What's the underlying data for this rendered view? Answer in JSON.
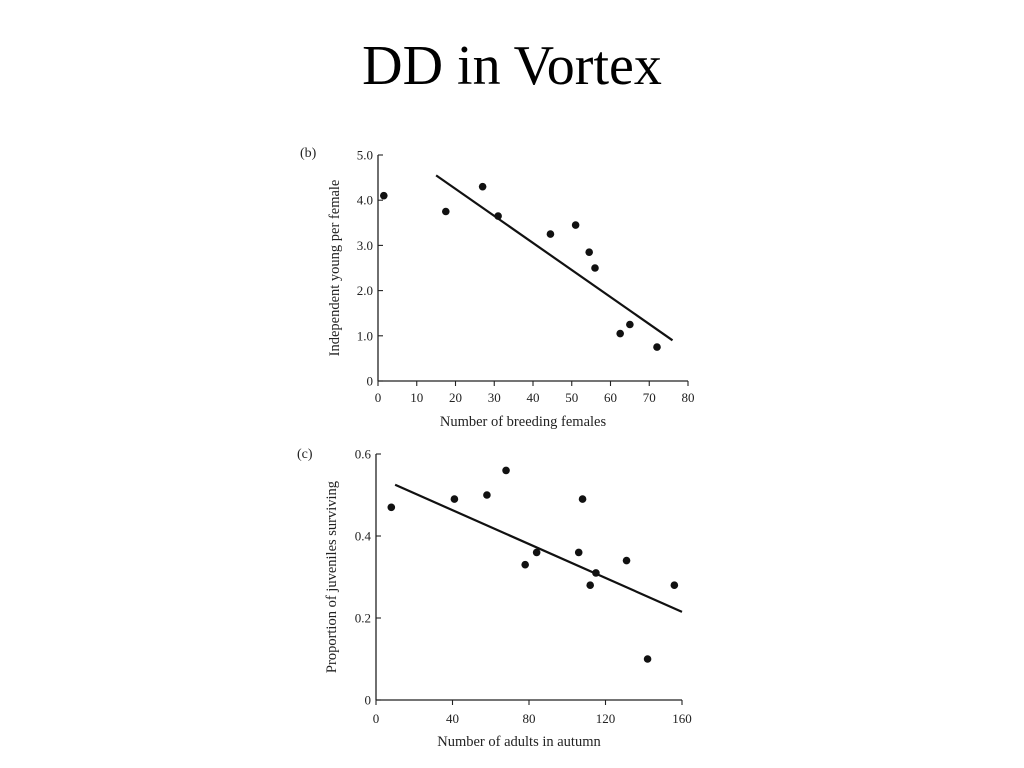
{
  "slide": {
    "title": "DD in Vortex"
  },
  "chart_data": [
    {
      "type": "scatter",
      "panel_label": "(b)",
      "xlabel": "Number of breeding females",
      "ylabel": "Independent young per female",
      "xlim": [
        0,
        80
      ],
      "ylim": [
        0,
        5.0
      ],
      "xticks": [
        0,
        10,
        20,
        30,
        40,
        50,
        60,
        70,
        80
      ],
      "xtick_labels": [
        "0",
        "10",
        "20",
        "30",
        "40",
        "50",
        "60",
        "70",
        "80"
      ],
      "yticks": [
        0,
        1.0,
        2.0,
        3.0,
        4.0,
        5.0
      ],
      "ytick_labels": [
        "0",
        "1.0",
        "2.0",
        "3.0",
        "4.0",
        "5.0"
      ],
      "points": {
        "x": [
          1.5,
          17.5,
          27,
          31,
          44.5,
          51,
          54.5,
          56,
          62.5,
          65,
          72
        ],
        "y": [
          4.1,
          3.75,
          4.3,
          3.65,
          3.25,
          3.45,
          2.85,
          2.5,
          1.05,
          1.25,
          0.75
        ]
      },
      "trend_line": {
        "x": [
          15,
          76
        ],
        "y": [
          4.55,
          0.9
        ]
      },
      "grid": false,
      "legend": "none"
    },
    {
      "type": "scatter",
      "panel_label": "(c)",
      "xlabel": "Number of adults in autumn",
      "ylabel": "Proportion of juveniles surviving",
      "xlim": [
        0,
        160
      ],
      "ylim": [
        0,
        0.6
      ],
      "xticks": [
        0,
        40,
        80,
        120,
        160
      ],
      "xtick_labels": [
        "0",
        "40",
        "80",
        "120",
        "160"
      ],
      "yticks": [
        0,
        0.2,
        0.4,
        0.6
      ],
      "ytick_labels": [
        "0",
        "0.2",
        "0.4",
        "0.6"
      ],
      "points": {
        "x": [
          8,
          41,
          58,
          68,
          78,
          84,
          106,
          108,
          112,
          115,
          131,
          142,
          156
        ],
        "y": [
          0.47,
          0.49,
          0.5,
          0.56,
          0.33,
          0.36,
          0.36,
          0.49,
          0.28,
          0.31,
          0.34,
          0.1,
          0.28
        ]
      },
      "trend_line": {
        "x": [
          10,
          160
        ],
        "y": [
          0.525,
          0.215
        ]
      },
      "grid": false,
      "legend": "none"
    }
  ]
}
